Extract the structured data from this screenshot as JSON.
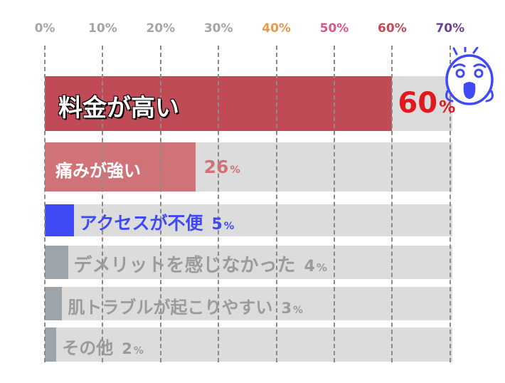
{
  "chart_data": {
    "type": "bar",
    "orientation": "horizontal",
    "categories": [
      "料金が高い",
      "痛みが強い",
      "アクセスが不便",
      "デメリットを感じなかった",
      "肌トラブルが起こりやすい",
      "その他"
    ],
    "values": [
      60,
      26,
      5,
      4,
      3,
      2
    ],
    "value_suffix": "%",
    "xlim": [
      0,
      70
    ],
    "x_ticks": [
      "0%",
      "10%",
      "20%",
      "30%",
      "40%",
      "50%",
      "60%",
      "70%"
    ],
    "grid": "vertical dashed",
    "colors": {
      "bars": [
        "#c04a55",
        "#d07378",
        "#3f49f5",
        "#9ea5aa",
        "#9ea5aa",
        "#9ea5aa"
      ],
      "labels": [
        "#ffffff",
        "#ffffff",
        "#3f49f5",
        "#9b9b9b",
        "#9b9b9b",
        "#9b9b9b"
      ],
      "values": [
        "#e0191f",
        "#d07378",
        "#3f49f5",
        "#9b9b9b",
        "#9b9b9b",
        "#9b9b9b"
      ],
      "ticks": [
        "#a5a5a5",
        "#a5a5a5",
        "#a5a5a5",
        "#a5a5a5",
        "#e79849",
        "#d9578b",
        "#c04a55",
        "#6d4391"
      ],
      "track": "#dcdcdd"
    },
    "decoration": "shocked-face-icon"
  }
}
